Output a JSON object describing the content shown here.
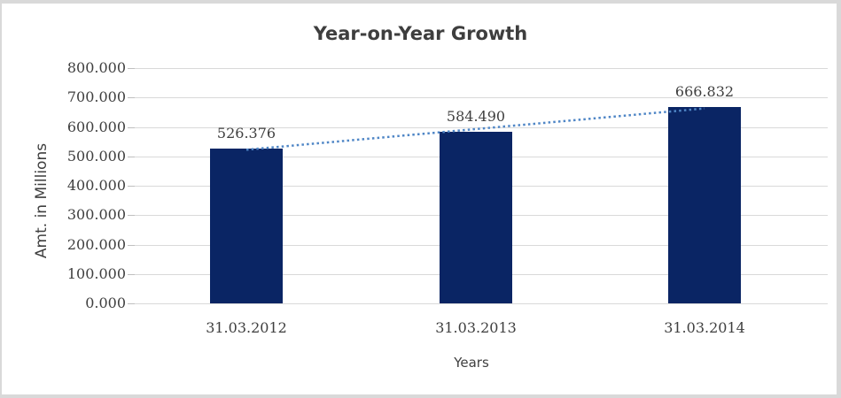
{
  "frame": {
    "border_color": "#D9D9D9",
    "background": "#FFFFFF"
  },
  "chart_data": {
    "type": "bar",
    "title": "Year-on-Year Growth",
    "xlabel": "Years",
    "ylabel": "Amt. in Millions",
    "categories": [
      "31.03.2012",
      "31.03.2013",
      "31.03.2014"
    ],
    "values": [
      526.376,
      584.49,
      666.832
    ],
    "bar_labels": [
      "526.376",
      "584.490",
      "666.832"
    ],
    "ylim": [
      0,
      800
    ],
    "ytick_step": 100,
    "ytick_labels": [
      "0.000",
      "100.000",
      "200.000",
      "300.000",
      "400.000",
      "500.000",
      "600.000",
      "700.000",
      "800.000"
    ],
    "grid": true,
    "legend": "none",
    "trendline": {
      "kind": "linear",
      "style": "dotted",
      "color": "#4F86C6"
    },
    "colors": {
      "bar": "#0A2564",
      "grid": "#D9D9D9",
      "tick": "#BFBFBF",
      "text": "#3F3F3F",
      "title": "#3E3E3E"
    }
  }
}
